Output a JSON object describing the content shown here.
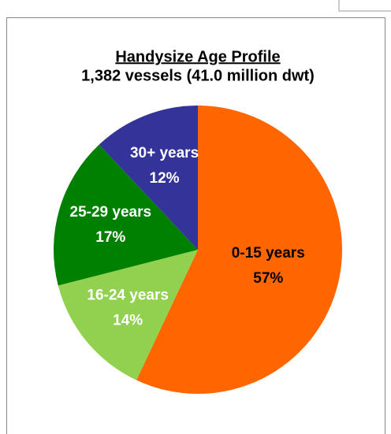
{
  "chart_data": {
    "type": "pie",
    "title": "Handysize Age Profile",
    "subtitle": "1,382 vessels (41.0 million dwt)",
    "categories": [
      "0-15 years",
      "16-24 years",
      "25-29 years",
      "30+ years"
    ],
    "values": [
      57,
      14,
      17,
      12
    ],
    "value_labels": [
      "57%",
      "14%",
      "17%",
      "12%"
    ],
    "colors": [
      "#ff6600",
      "#92d050",
      "#008000",
      "#333399"
    ],
    "label_colors": [
      "#000000",
      "#ffffff",
      "#ffffff",
      "#ffffff"
    ]
  }
}
